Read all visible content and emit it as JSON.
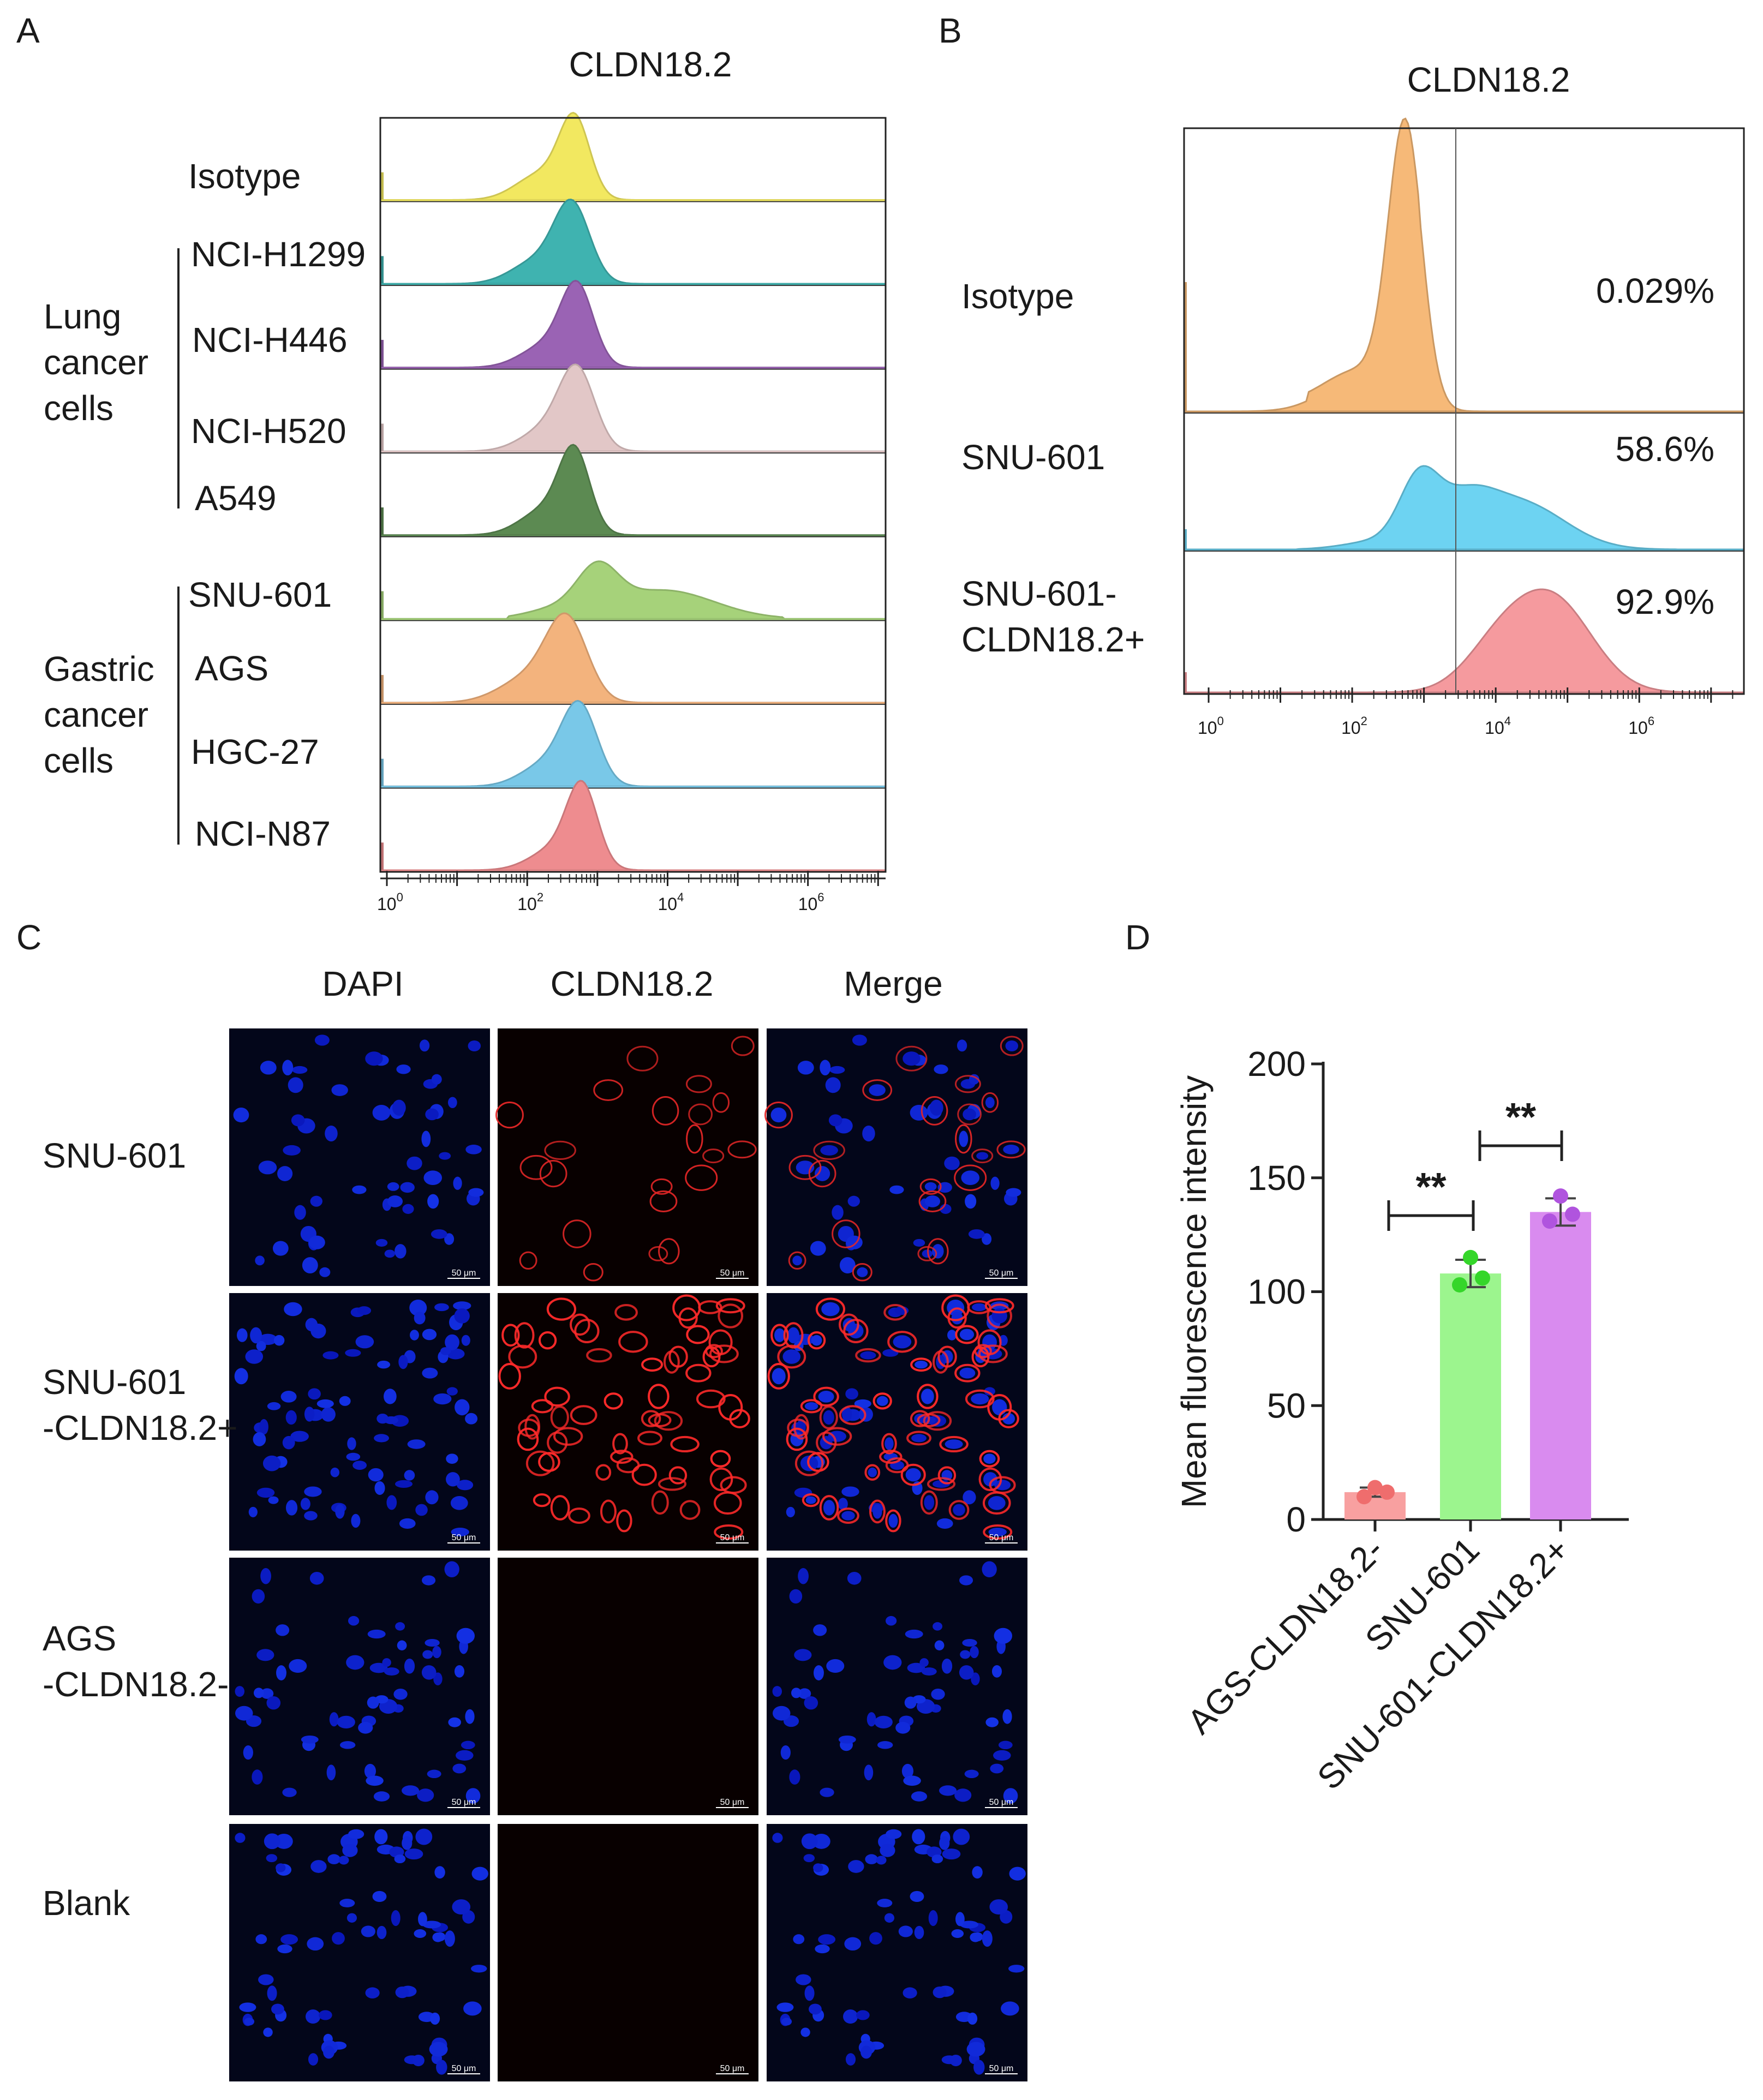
{
  "panel_letters": [
    "A",
    "B",
    "C",
    "D"
  ],
  "panel_a": {
    "title": "CLDN18.2",
    "track_labels": [
      "Isotype",
      "NCI-H1299",
      "NCI-H446",
      "NCI-H520",
      "A549",
      "SNU-601",
      "AGS",
      "HGC-27",
      "NCI-N87"
    ],
    "groups": [
      {
        "label_lines": [
          "Lung",
          "cancer",
          "cells"
        ]
      },
      {
        "label_lines": [
          "Gastric",
          "cancer",
          "cells"
        ]
      }
    ],
    "track_colors": [
      "#f2e860",
      "#3fb3b0",
      "#9a63b4",
      "#e2c7c7",
      "#5c8a52",
      "#a6d27a",
      "#f3b37d",
      "#79c8e8",
      "#ee8c8f"
    ],
    "axis_ticks": [
      {
        "base": "10",
        "exp": "0"
      },
      {
        "base": "10",
        "exp": "2"
      },
      {
        "base": "10",
        "exp": "4"
      },
      {
        "base": "10",
        "exp": "6"
      }
    ]
  },
  "panel_b": {
    "title": "CLDN18.2",
    "tracks": [
      {
        "label_lines": [
          "Isotype"
        ],
        "percent": "0.029%",
        "color": "#f6b978"
      },
      {
        "label_lines": [
          "SNU-601"
        ],
        "percent": "58.6%",
        "color": "#6dd3f2"
      },
      {
        "label_lines": [
          "SNU-601-",
          "CLDN18.2+"
        ],
        "percent": "92.9%",
        "color": "#f59a9e"
      }
    ],
    "axis_ticks": [
      {
        "base": "10",
        "exp": "0"
      },
      {
        "base": "10",
        "exp": "2"
      },
      {
        "base": "10",
        "exp": "4"
      },
      {
        "base": "10",
        "exp": "6"
      }
    ]
  },
  "panel_c": {
    "column_headers": [
      "DAPI",
      "CLDN18.2",
      "Merge"
    ],
    "rows": [
      {
        "label_lines": [
          "SNU-601"
        ],
        "red": "ring"
      },
      {
        "label_lines": [
          "SNU-601",
          "-CLDN18.2+"
        ],
        "red": "dense"
      },
      {
        "label_lines": [
          "AGS",
          "-CLDN18.2-"
        ],
        "red": "none"
      },
      {
        "label_lines": [
          "Blank"
        ],
        "red": "none"
      }
    ],
    "scale_bar": "50 μm"
  },
  "chart_data": {
    "type": "bar",
    "ylabel": "Mean fluorescence intensity",
    "ylim": [
      0,
      200
    ],
    "yticks": [
      "0",
      "50",
      "100",
      "150",
      "200"
    ],
    "categories": [
      "AGS-CLDN18.2-",
      "SNU-601",
      "SNU-601-CLDN18.2+"
    ],
    "values": [
      12,
      108,
      135
    ],
    "errors": [
      2,
      6,
      6
    ],
    "points": [
      [
        10,
        14,
        12
      ],
      [
        103,
        115,
        106
      ],
      [
        131,
        142,
        134
      ]
    ],
    "bar_colors": [
      "#f8a0a0",
      "#9cf58e",
      "#d98bef"
    ],
    "point_colors": [
      "#ef6d6d",
      "#35d62a",
      "#b054de"
    ],
    "significance": [
      {
        "from": 0,
        "to": 1,
        "label": "**"
      },
      {
        "from": 1,
        "to": 2,
        "label": "**"
      }
    ]
  }
}
